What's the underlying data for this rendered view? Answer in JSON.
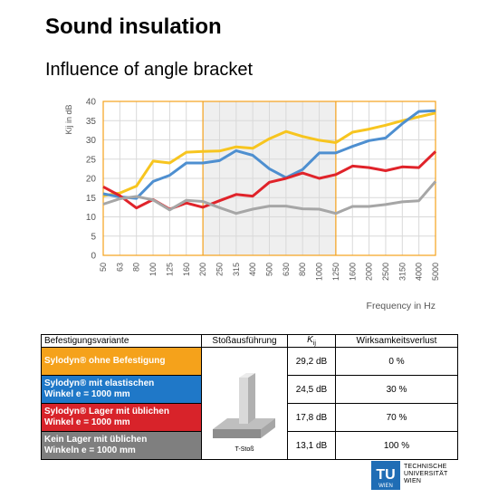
{
  "title": "Sound insulation",
  "subtitle": "Influence of angle bracket",
  "chart_data": {
    "type": "line",
    "ylabel": "Kij in dB",
    "xlabel": "Frequency in Hz",
    "ylim": [
      0,
      40
    ],
    "yticks": [
      0,
      5,
      10,
      15,
      20,
      25,
      30,
      35,
      40
    ],
    "categories": [
      "50",
      "63",
      "80",
      "100",
      "125",
      "160",
      "200",
      "250",
      "315",
      "400",
      "500",
      "630",
      "800",
      "1000",
      "1250",
      "1600",
      "2000",
      "2500",
      "3150",
      "4000",
      "5000"
    ],
    "shaded_range": [
      "200",
      "1250"
    ],
    "grid": true,
    "series": [
      {
        "color": "#f7c51f",
        "values": [
          15.5,
          16.2,
          18,
          24.5,
          24,
          26.8,
          27,
          27.1,
          28.2,
          27.8,
          30.3,
          32.2,
          30.9,
          29.9,
          29.3,
          32,
          32.8,
          33.8,
          35,
          36,
          37
        ]
      },
      {
        "color": "#4e8fd0",
        "values": [
          16,
          15.2,
          14.8,
          19.2,
          20.8,
          24,
          24,
          24.6,
          27.2,
          26,
          22.5,
          20.2,
          22.3,
          26.6,
          26.6,
          28.3,
          29.8,
          30.5,
          34.2,
          37.4,
          37.6
        ]
      },
      {
        "color": "#e0232a",
        "values": [
          17.8,
          15.5,
          12.3,
          14.5,
          12,
          13.6,
          12.5,
          14.2,
          15.8,
          15.4,
          19,
          20,
          21.4,
          20,
          21,
          23.2,
          22.8,
          22,
          23,
          22.8,
          27
        ]
      },
      {
        "color": "#a6a6a6",
        "values": [
          13.3,
          14.7,
          15.3,
          14.4,
          11.8,
          14.3,
          14,
          12.4,
          10.9,
          12,
          12.8,
          12.8,
          12.1,
          12,
          10.9,
          12.7,
          12.7,
          13.2,
          13.9,
          14.2,
          19.2
        ]
      }
    ]
  },
  "table": {
    "headers": [
      "Befestigungsvariante",
      "Stoßausführung",
      "Kij",
      "Wirksamkeitsverlust"
    ],
    "image_caption": "T-Stoß",
    "rows": [
      {
        "label_line1": "Sylodyn® ohne Befestigung",
        "label_line2": "",
        "color": "#f5a21b",
        "kij": "29,2 dB",
        "loss": "0 %"
      },
      {
        "label_line1": "Sylodyn® mit elastischen",
        "label_line2": "Winkel e = 1000 mm",
        "color": "#1f78c8",
        "kij": "24,5 dB",
        "loss": "30 %"
      },
      {
        "label_line1": "Sylodyn® Lager mit üblichen",
        "label_line2": "Winkel e = 1000 mm",
        "color": "#d8232a",
        "kij": "17,8 dB",
        "loss": "70 %"
      },
      {
        "label_line1": "Kein Lager mit üblichen",
        "label_line2": "Winkeln e = 1000 mm",
        "color": "#7f7f7f",
        "kij": "13,1 dB",
        "loss": "100 %"
      }
    ]
  },
  "logo": {
    "mark": "TU",
    "sub": "WIEN",
    "line1": "TECHNISCHE",
    "line2": "UNIVERSITÄT",
    "line3": "WIEN"
  }
}
